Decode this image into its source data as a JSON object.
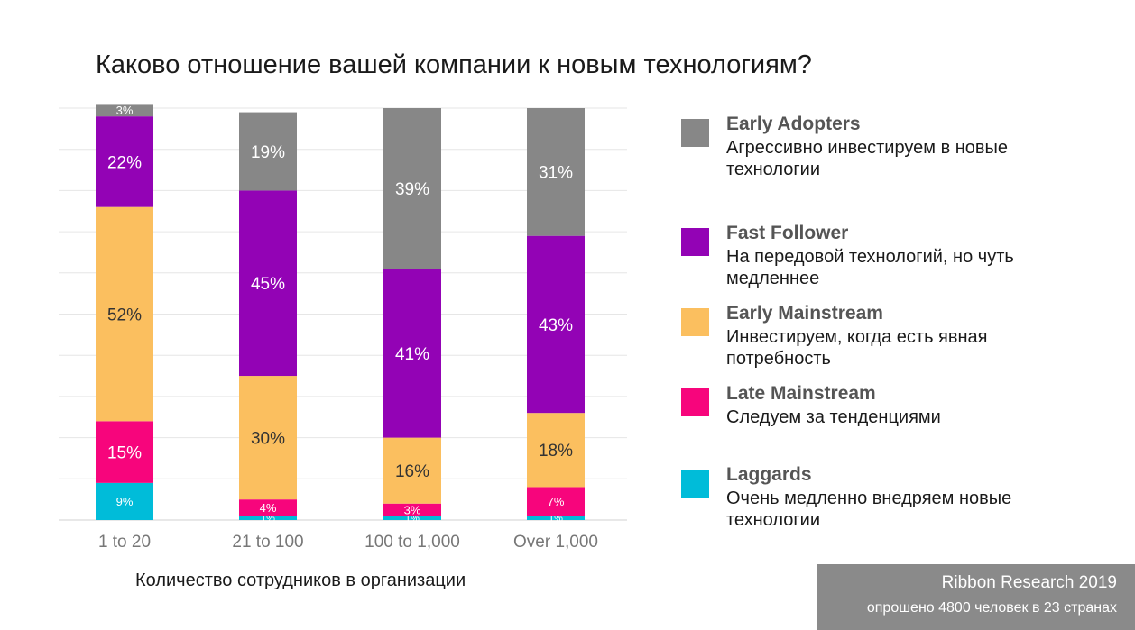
{
  "title": "Каково отношение вашей компании к новым технологиям?",
  "xlabel": "Количество сотрудников в организации",
  "source": {
    "title": "Ribbon Research 2019",
    "subtitle": "опрошено 4800 человек в 23 странах"
  },
  "legend": [
    {
      "name": "Early Adopters",
      "desc": "Агрессивно инвестируем в новые технологии",
      "color": "#878787"
    },
    {
      "name": "Fast Follower",
      "desc": "На передовой технологий, но чуть медленнее",
      "color": "#9303b5"
    },
    {
      "name": "Early Mainstream",
      "desc": "Инвестируем, когда есть явная потребность",
      "color": "#fbbf5f"
    },
    {
      "name": "Late Mainstream",
      "desc": "Следуем за тенденциями",
      "color": "#f7057c"
    },
    {
      "name": "Laggards",
      "desc": "Очень медленно внедряем новые технологии",
      "color": "#00bcd9"
    }
  ],
  "chart_data": {
    "type": "bar",
    "stacked": true,
    "normalized_percent": true,
    "title": "Каково отношение вашей компании к новым технологиям?",
    "xlabel": "Количество сотрудников в организации",
    "ylabel": "",
    "ylim": [
      0,
      100
    ],
    "grid": true,
    "legend_position": "right",
    "categories": [
      "1 to 20",
      "21 to 100",
      "100 to 1,000",
      "Over 1,000"
    ],
    "series": [
      {
        "name": "Laggards",
        "color": "#00bcd9",
        "values": [
          9,
          1,
          1,
          1
        ],
        "labels": [
          "9%",
          "1%",
          "1%",
          "1%"
        ]
      },
      {
        "name": "Late Mainstream",
        "color": "#f7057c",
        "values": [
          15,
          4,
          3,
          7
        ],
        "labels": [
          "15%",
          "4%",
          "3%",
          "7%"
        ]
      },
      {
        "name": "Early Mainstream",
        "color": "#fbbf5f",
        "values": [
          52,
          30,
          16,
          18
        ],
        "labels": [
          "52%",
          "30%",
          "16%",
          "18%"
        ]
      },
      {
        "name": "Fast Follower",
        "color": "#9303b5",
        "values": [
          22,
          45,
          41,
          43
        ],
        "labels": [
          "22%",
          "45%",
          "41%",
          "43%"
        ]
      },
      {
        "name": "Early Adopters",
        "color": "#878787",
        "values": [
          3,
          19,
          39,
          31
        ],
        "labels": [
          "3%",
          "19%",
          "39%",
          "31%"
        ]
      }
    ]
  }
}
